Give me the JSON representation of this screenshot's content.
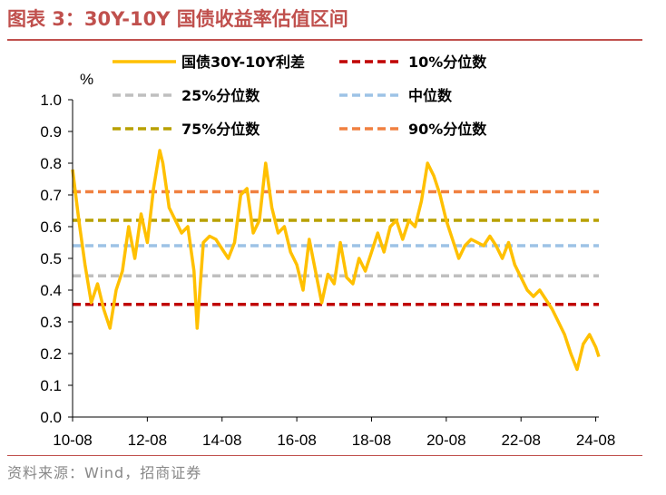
{
  "figure": {
    "title": "图表 3：30Y-10Y 国债收益率估值区间",
    "source": "资料来源：Wind，招商证券"
  },
  "chart_data": {
    "type": "line",
    "title": "",
    "unit_label": "%",
    "ylim": [
      0,
      1.0
    ],
    "y_ticks": [
      "0.0",
      "0.1",
      "0.2",
      "0.3",
      "0.4",
      "0.5",
      "0.6",
      "0.7",
      "0.8",
      "0.9",
      "1.0"
    ],
    "x_ticks": [
      "10-08",
      "12-08",
      "14-08",
      "16-08",
      "18-08",
      "20-08",
      "22-08",
      "24-08"
    ],
    "x_range": [
      "2010-08",
      "2024-09"
    ],
    "grid": false,
    "legend_position": "top",
    "series": [
      {
        "name": "国债30Y-10Y利差",
        "color": "#ffc000",
        "style": "solid",
        "points": [
          [
            "2010-08",
            0.78
          ],
          [
            "2010-10",
            0.62
          ],
          [
            "2010-12",
            0.48
          ],
          [
            "2011-02",
            0.36
          ],
          [
            "2011-04",
            0.42
          ],
          [
            "2011-06",
            0.34
          ],
          [
            "2011-08",
            0.28
          ],
          [
            "2011-10",
            0.4
          ],
          [
            "2011-12",
            0.46
          ],
          [
            "2012-02",
            0.6
          ],
          [
            "2012-04",
            0.5
          ],
          [
            "2012-06",
            0.64
          ],
          [
            "2012-08",
            0.55
          ],
          [
            "2012-10",
            0.72
          ],
          [
            "2012-12",
            0.84
          ],
          [
            "2013-01",
            0.8
          ],
          [
            "2013-03",
            0.66
          ],
          [
            "2013-05",
            0.62
          ],
          [
            "2013-07",
            0.58
          ],
          [
            "2013-09",
            0.6
          ],
          [
            "2013-11",
            0.46
          ],
          [
            "2013-12",
            0.28
          ],
          [
            "2014-02",
            0.55
          ],
          [
            "2014-04",
            0.57
          ],
          [
            "2014-06",
            0.56
          ],
          [
            "2014-08",
            0.53
          ],
          [
            "2014-10",
            0.5
          ],
          [
            "2014-12",
            0.55
          ],
          [
            "2015-02",
            0.7
          ],
          [
            "2015-04",
            0.72
          ],
          [
            "2015-06",
            0.58
          ],
          [
            "2015-08",
            0.62
          ],
          [
            "2015-10",
            0.8
          ],
          [
            "2015-12",
            0.66
          ],
          [
            "2016-02",
            0.58
          ],
          [
            "2016-04",
            0.6
          ],
          [
            "2016-06",
            0.52
          ],
          [
            "2016-08",
            0.48
          ],
          [
            "2016-10",
            0.4
          ],
          [
            "2016-12",
            0.56
          ],
          [
            "2017-02",
            0.46
          ],
          [
            "2017-04",
            0.36
          ],
          [
            "2017-06",
            0.45
          ],
          [
            "2017-08",
            0.42
          ],
          [
            "2017-10",
            0.55
          ],
          [
            "2017-12",
            0.44
          ],
          [
            "2018-02",
            0.42
          ],
          [
            "2018-04",
            0.5
          ],
          [
            "2018-06",
            0.46
          ],
          [
            "2018-08",
            0.52
          ],
          [
            "2018-10",
            0.58
          ],
          [
            "2018-12",
            0.52
          ],
          [
            "2019-02",
            0.6
          ],
          [
            "2019-04",
            0.62
          ],
          [
            "2019-06",
            0.56
          ],
          [
            "2019-08",
            0.62
          ],
          [
            "2019-10",
            0.6
          ],
          [
            "2019-12",
            0.68
          ],
          [
            "2020-02",
            0.8
          ],
          [
            "2020-04",
            0.76
          ],
          [
            "2020-06",
            0.7
          ],
          [
            "2020-08",
            0.62
          ],
          [
            "2020-10",
            0.56
          ],
          [
            "2020-12",
            0.5
          ],
          [
            "2021-02",
            0.54
          ],
          [
            "2021-04",
            0.56
          ],
          [
            "2021-06",
            0.55
          ],
          [
            "2021-08",
            0.54
          ],
          [
            "2021-10",
            0.57
          ],
          [
            "2021-12",
            0.54
          ],
          [
            "2022-02",
            0.5
          ],
          [
            "2022-04",
            0.55
          ],
          [
            "2022-06",
            0.48
          ],
          [
            "2022-08",
            0.44
          ],
          [
            "2022-10",
            0.4
          ],
          [
            "2022-12",
            0.38
          ],
          [
            "2023-02",
            0.4
          ],
          [
            "2023-04",
            0.37
          ],
          [
            "2023-06",
            0.34
          ],
          [
            "2023-08",
            0.3
          ],
          [
            "2023-10",
            0.26
          ],
          [
            "2023-12",
            0.2
          ],
          [
            "2024-02",
            0.15
          ],
          [
            "2024-04",
            0.23
          ],
          [
            "2024-06",
            0.26
          ],
          [
            "2024-08",
            0.22
          ],
          [
            "2024-09",
            0.19
          ]
        ]
      },
      {
        "name": "10%分位数",
        "color": "#c00000",
        "style": "dashed",
        "value": 0.355
      },
      {
        "name": "25%分位数",
        "color": "#bfbfbf",
        "style": "dashed",
        "value": 0.445
      },
      {
        "name": "中位数",
        "color": "#9dc3e6",
        "style": "dashed",
        "value": 0.54
      },
      {
        "name": "75%分位数",
        "color": "#b8a000",
        "style": "dashed",
        "value": 0.62
      },
      {
        "name": "90%分位数",
        "color": "#f08040",
        "style": "dashed",
        "value": 0.71
      }
    ]
  }
}
